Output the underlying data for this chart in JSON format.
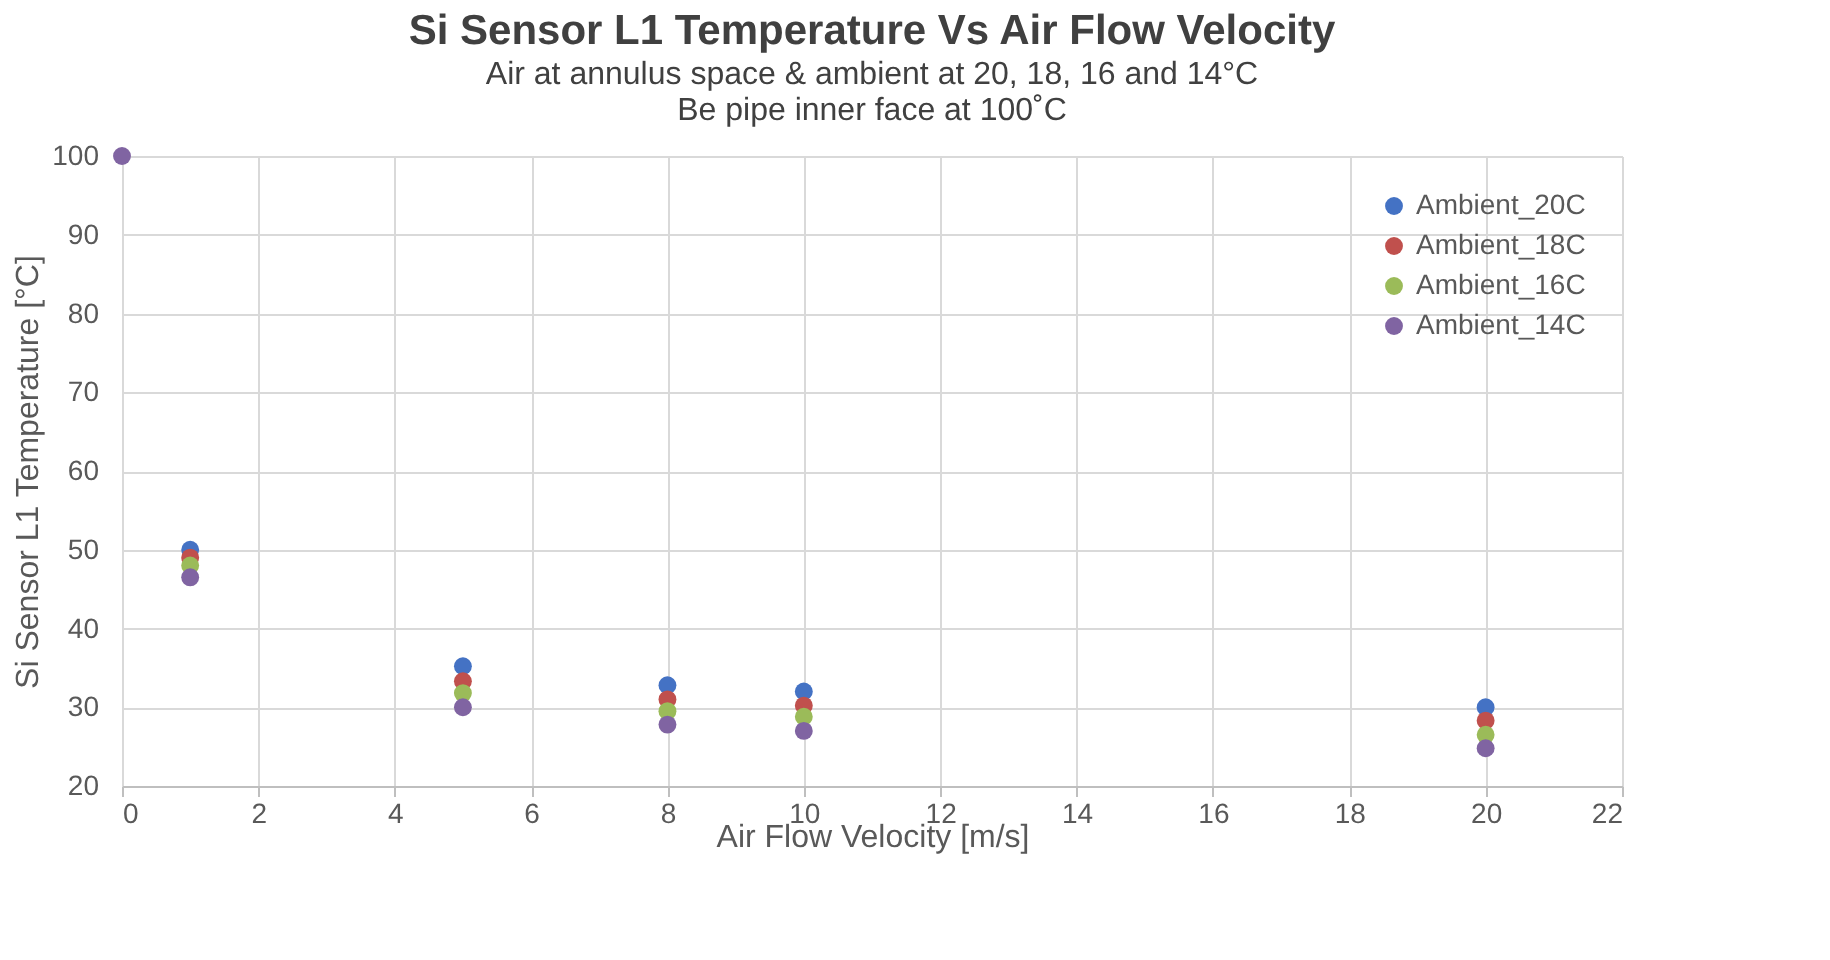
{
  "chart_data": {
    "type": "scatter",
    "title": "Si Sensor L1 Temperature Vs Air Flow Velocity",
    "subtitle": "Air at annulus space & ambient at 20, 18, 16 and 14°C",
    "annotations": [
      "Be pipe inner face at 100˚C"
    ],
    "xlabel": "Air Flow Velocity [m/s]",
    "ylabel": "Si Sensor L1 Temperature [°C]",
    "x": [
      0,
      1,
      5,
      8,
      10,
      20
    ],
    "series": [
      {
        "name": "Ambient_20C",
        "color": "#4472c4",
        "values": [
          null,
          50,
          35.2,
          32.8,
          32,
          30
        ]
      },
      {
        "name": "Ambient_18C",
        "color": "#c0504d",
        "values": [
          null,
          49,
          33.3,
          31,
          30.2,
          28.3
        ]
      },
      {
        "name": "Ambient_16C",
        "color": "#9bbb59",
        "values": [
          null,
          48,
          31.8,
          29.5,
          28.8,
          26.5
        ]
      },
      {
        "name": "Ambient_14C",
        "color": "#8064a2",
        "values": [
          100,
          46.5,
          30,
          27.8,
          27,
          24.8
        ]
      }
    ],
    "xlim": [
      0,
      22
    ],
    "xticks": [
      0,
      2,
      4,
      6,
      8,
      10,
      12,
      14,
      16,
      18,
      20,
      22
    ],
    "ylim": [
      20,
      100
    ],
    "yticks": [
      20,
      30,
      40,
      50,
      60,
      70,
      80,
      90,
      100
    ],
    "grid": true,
    "legend": "top right",
    "marker": "circle"
  }
}
